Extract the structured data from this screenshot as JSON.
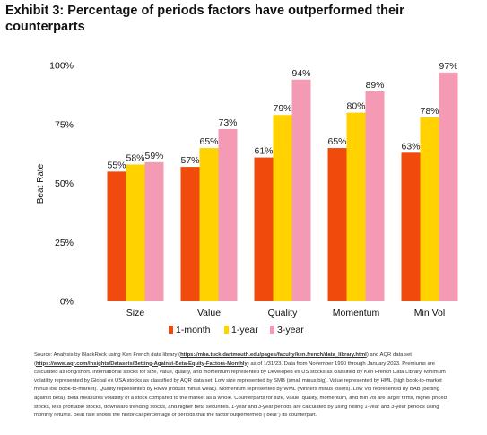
{
  "title": "Exhibit 3: Percentage of periods factors have outperformed their counterparts",
  "chart_data": {
    "type": "bar",
    "ylabel": "Beat Rate",
    "ylim": [
      0,
      100
    ],
    "yticks": [
      "0%",
      "25%",
      "50%",
      "75%",
      "100%"
    ],
    "categories": [
      "Size",
      "Value",
      "Quality",
      "Momentum",
      "Min Vol"
    ],
    "series": [
      {
        "name": "1-month",
        "color": "#f04a0c",
        "values": [
          55,
          57,
          61,
          65,
          63
        ],
        "labels": [
          "55%",
          "57%",
          "61%",
          "65%",
          "63%"
        ]
      },
      {
        "name": "1-year",
        "color": "#ffd200",
        "values": [
          58,
          65,
          79,
          80,
          78
        ],
        "labels": [
          "58%",
          "65%",
          "79%",
          "80%",
          "78%"
        ]
      },
      {
        "name": "3-year",
        "color": "#f59ab5",
        "values": [
          59,
          73,
          94,
          89,
          97
        ],
        "labels": [
          "59%",
          "73%",
          "94%",
          "89%",
          "97%"
        ]
      }
    ],
    "grid": false,
    "legend": "bottom"
  },
  "source": {
    "part1": "Source: Analysis by BlackRock using Ken French data library (",
    "link1": "https://mba.tuck.dartmouth.edu/pages/faculty/ken.french/data_library.html",
    "part2": ") and AQR data set (",
    "link2": "https://www.aqr.com/Insights/Datasets/Betting-Against-Beta-Equity-Factors-Monthly",
    "part3": ") as of 1/31/23. Data from November 1990 through January 2023. Premiums are calculated as long/short. International stocks for size, value, quality, and momentum represented by Developed ex US stocks as classified by Ken French Data Library. Minimum volatility represented by Global ex USA stocks as classified by AQR data set. Low size represented by SMB (small minus big). Value represented by HML (high book-to-market minus low book-to-market). Quality represented by RMW (robust minus weak). Momentum represented by WML (winners minus losers). Low Vol represented by BAB (betting against beta). Beta measures volatility of a stock compared to the market as a whole. Counterparts for size, value, quality, momentum, and min vol are larger firms, higher priced stocks, less profitable stocks, downward trending stocks, and higher beta securities. 1-year and 3-year periods are calculated by using rolling 1-year and 3-year periods using monthly returns. Beat rate shows the historical percentage of periods that the factor outperformed (“beat”) its counterpart."
  }
}
